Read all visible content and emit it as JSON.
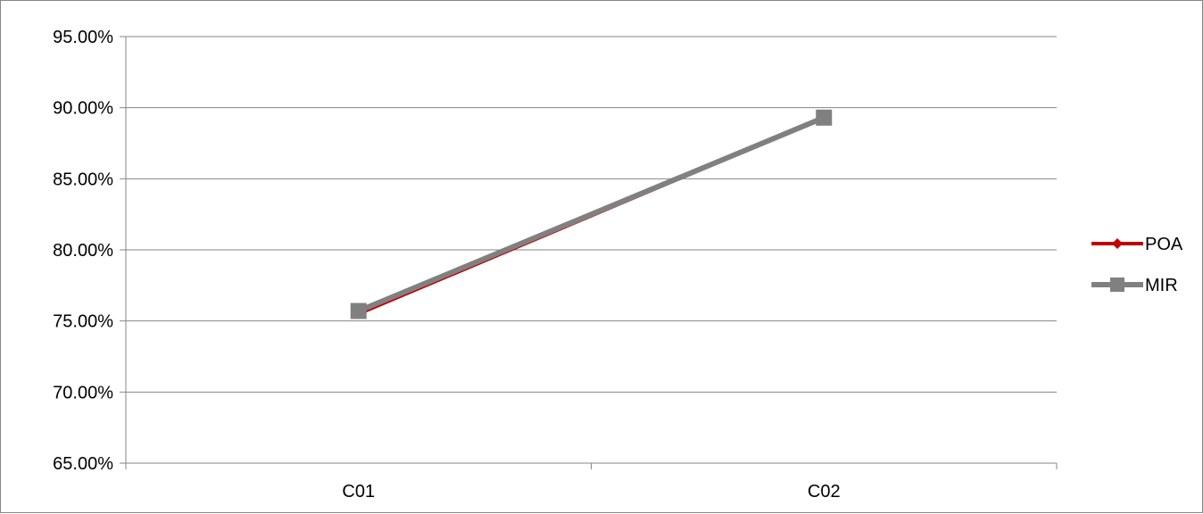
{
  "chart_data": {
    "type": "line",
    "title": "",
    "xlabel": "",
    "ylabel": "",
    "categories": [
      "C01",
      "C02"
    ],
    "ylim": [
      0.65,
      0.95
    ],
    "y_ticks": [
      0.65,
      0.7,
      0.75,
      0.8,
      0.85,
      0.9,
      0.95
    ],
    "y_tick_labels": [
      "65.00%",
      "70.00%",
      "75.00%",
      "80.00%",
      "85.00%",
      "90.00%",
      "95.00%"
    ],
    "grid": true,
    "legend_position": "right",
    "series": [
      {
        "name": "POA",
        "values": [
          0.755,
          0.893
        ],
        "color": "#C00000",
        "marker": "diamond"
      },
      {
        "name": "MIR",
        "values": [
          0.757,
          0.893
        ],
        "color": "#808080",
        "marker": "square"
      }
    ]
  }
}
